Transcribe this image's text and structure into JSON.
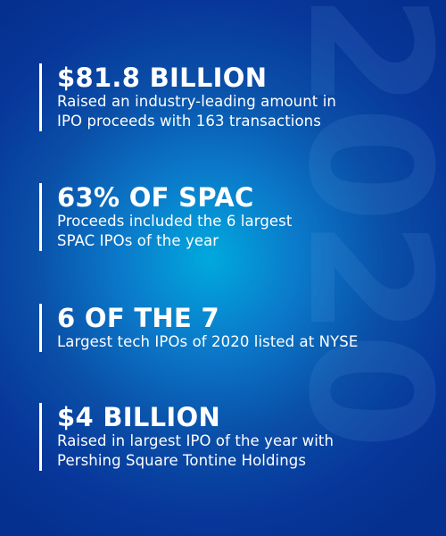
{
  "watermark": "2020",
  "stats": [
    {
      "headline": "$81.8 BILLION",
      "lines": [
        "Raised an industry-leading amount in",
        "IPO proceeds with 163 transactions"
      ]
    },
    {
      "headline": "63% OF SPAC",
      "lines": [
        "Proceeds included the 6 largest",
        "SPAC IPOs of the year"
      ]
    },
    {
      "headline": "6 OF THE 7",
      "lines": [
        "Largest tech IPOs of 2020 listed at NYSE"
      ]
    },
    {
      "headline": "$4 BILLION",
      "lines": [
        "Raised in largest IPO of the year with",
        "Pershing Square Tontine Holdings"
      ]
    }
  ],
  "colors": {
    "background_center": "#00a9de",
    "background_edge": "#06308f",
    "text": "#ffffff"
  }
}
